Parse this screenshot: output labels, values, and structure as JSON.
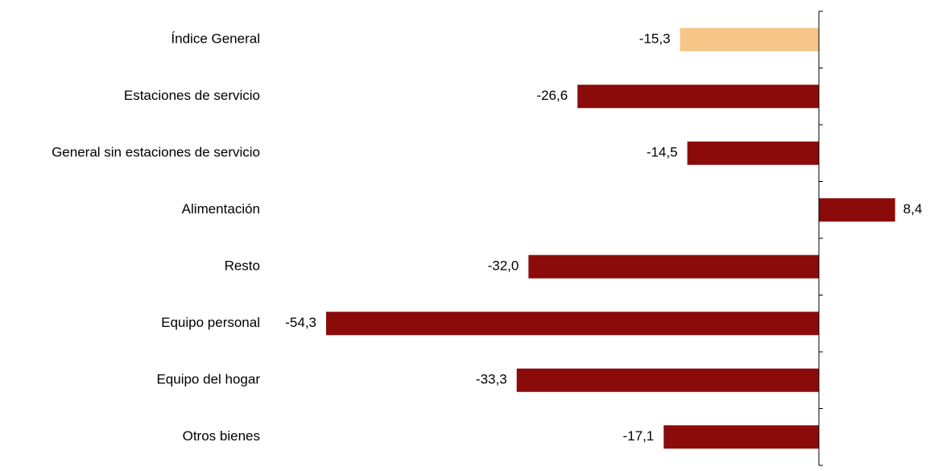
{
  "chart_data": {
    "type": "bar",
    "orientation": "horizontal",
    "categories": [
      "Índice General",
      "Estaciones de servicio",
      "General sin estaciones de servicio",
      "Alimentación",
      "Resto",
      "Equipo personal",
      "Equipo del hogar",
      "Otros bienes"
    ],
    "values": [
      -15.3,
      -26.6,
      -14.5,
      8.4,
      -32.0,
      -54.3,
      -33.3,
      -17.1
    ],
    "value_labels": [
      "-15,3",
      "-26,6",
      "-14,5",
      "8,4",
      "-32,0",
      "-54,3",
      "-33,3",
      "-17,1"
    ],
    "highlight_index": 0,
    "colors": {
      "highlight": "#F5C687",
      "bar": "#8B0A0A",
      "axis": "#000000"
    },
    "title": "",
    "xlabel": "",
    "ylabel": "",
    "xlim": [
      -54.3,
      8.4
    ],
    "grid": false,
    "legend": "none"
  }
}
